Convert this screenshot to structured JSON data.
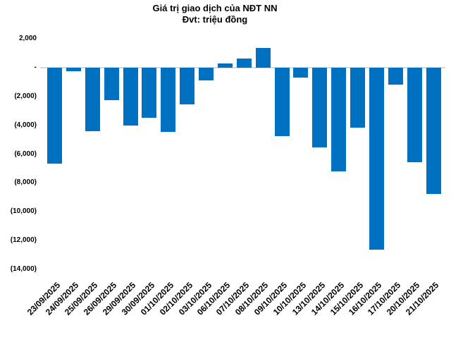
{
  "title": "Giá trị giao dịch của NĐT NN",
  "subtitle": "Đvt: triệu đồng",
  "chart_data": {
    "type": "bar",
    "title": "Giá trị giao dịch của NĐT NN",
    "subtitle_unit": "Đvt: triệu đồng",
    "categories": [
      "23/09/2025",
      "24/09/2025",
      "25/09/2025",
      "26/09/2025",
      "29/09/2025",
      "30/09/2025",
      "01/10/2025",
      "02/10/2025",
      "03/10/2025",
      "06/10/2025",
      "07/10/2025",
      "08/10/2025",
      "09/10/2025",
      "10/10/2025",
      "13/10/2025",
      "14/10/2025",
      "15/10/2025",
      "16/10/2025",
      "17/10/2025",
      "20/10/2025",
      "21/10/2025"
    ],
    "values": [
      -6650,
      -250,
      -4400,
      -2250,
      -4000,
      -3500,
      -4450,
      -2550,
      -900,
      300,
      650,
      1350,
      -4750,
      -700,
      -5550,
      -7200,
      -4150,
      -12650,
      -1200,
      -6550,
      -8750
    ],
    "xlabel": "",
    "ylabel": "",
    "ylim": [
      -14000,
      2000
    ],
    "y_tick_labels": [
      "2,000",
      "-",
      "(2,000)",
      "(4,000)",
      "(6,000)",
      "(8,000)",
      "(10,000)",
      "(12,000)",
      "(14,000)"
    ],
    "y_tick_values": [
      2000,
      0,
      -2000,
      -4000,
      -6000,
      -8000,
      -10000,
      -12000,
      -14000
    ],
    "grid": false,
    "legend": false,
    "bar_color": "#0070C0",
    "zero_line_color": "#D9D9D9",
    "text_color": "#000000"
  }
}
